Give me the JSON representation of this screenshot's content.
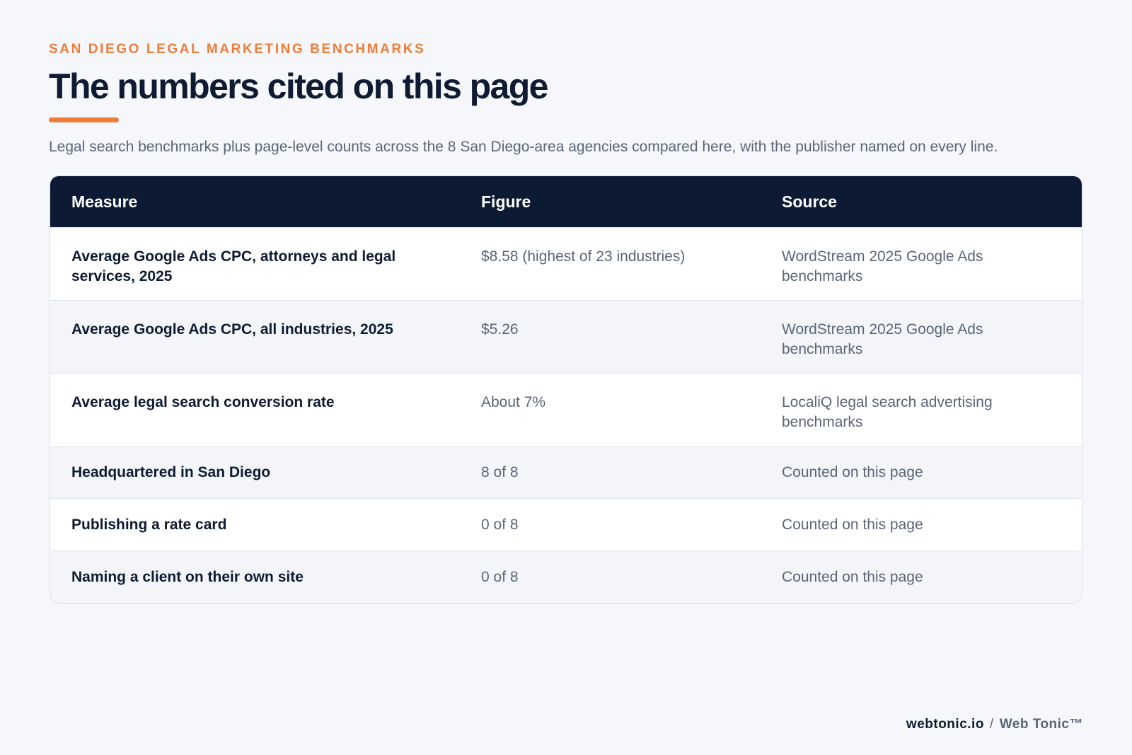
{
  "header": {
    "eyebrow": "SAN DIEGO LEGAL MARKETING BENCHMARKS",
    "title": "The numbers cited on this page",
    "subtitle": "Legal search benchmarks plus page-level counts across the 8 San Diego-area agencies compared here, with the publisher named on every line."
  },
  "table": {
    "columns": [
      "Measure",
      "Figure",
      "Source"
    ],
    "rows": [
      {
        "measure": "Average Google Ads CPC, attorneys and legal services, 2025",
        "figure": "$8.58 (highest of 23 industries)",
        "source": "WordStream 2025 Google Ads benchmarks"
      },
      {
        "measure": "Average Google Ads CPC, all industries, 2025",
        "figure": "$5.26",
        "source": "WordStream 2025 Google Ads benchmarks"
      },
      {
        "measure": "Average legal search conversion rate",
        "figure": "About 7%",
        "source": "LocaliQ legal search advertising benchmarks"
      },
      {
        "measure": "Headquartered in San Diego",
        "figure": "8 of 8",
        "source": "Counted on this page"
      },
      {
        "measure": "Publishing a rate card",
        "figure": "0 of 8",
        "source": "Counted on this page"
      },
      {
        "measure": "Naming a client on their own site",
        "figure": "0 of 8",
        "source": "Counted on this page"
      }
    ]
  },
  "footer": {
    "domain": "webtonic.io",
    "separator": "/",
    "brand": "Web Tonic™"
  },
  "colors": {
    "accent": "#f07c3a",
    "navy": "#0d1a33",
    "background": "#f5f7fa",
    "muted_text": "#5b6577"
  }
}
